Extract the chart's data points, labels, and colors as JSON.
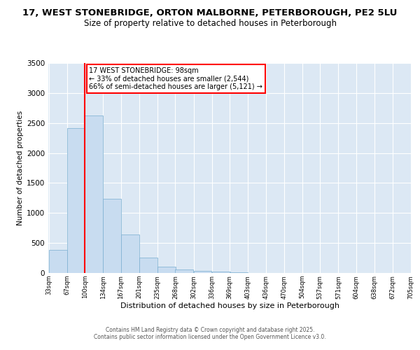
{
  "title1": "17, WEST STONEBRIDGE, ORTON MALBORNE, PETERBOROUGH, PE2 5LU",
  "title2": "Size of property relative to detached houses in Peterborough",
  "xlabel": "Distribution of detached houses by size in Peterborough",
  "ylabel": "Number of detached properties",
  "bar_color": "#c8dcf0",
  "bar_edge_color": "#7aaed0",
  "bg_color": "#dce8f4",
  "vline_color": "red",
  "vline_x": 100,
  "annotation_title": "17 WEST STONEBRIDGE: 98sqm",
  "annotation_line1": "← 33% of detached houses are smaller (2,544)",
  "annotation_line2": "66% of semi-detached houses are larger (5,121) →",
  "bin_labels": [
    "33sqm",
    "67sqm",
    "100sqm",
    "134sqm",
    "167sqm",
    "201sqm",
    "235sqm",
    "268sqm",
    "302sqm",
    "336sqm",
    "369sqm",
    "403sqm",
    "436sqm",
    "470sqm",
    "504sqm",
    "537sqm",
    "571sqm",
    "604sqm",
    "638sqm",
    "672sqm",
    "705sqm"
  ],
  "bin_left_edges": [
    33,
    67,
    100,
    134,
    167,
    201,
    235,
    268,
    302,
    336,
    369,
    403,
    436,
    470,
    504,
    537,
    571,
    604,
    638,
    672
  ],
  "bin_width": 34,
  "bar_heights": [
    390,
    2420,
    2620,
    1240,
    640,
    260,
    100,
    60,
    40,
    25,
    10,
    5,
    2,
    2,
    1,
    1,
    0,
    0,
    0,
    0
  ],
  "ylim": [
    0,
    3500
  ],
  "yticks": [
    0,
    500,
    1000,
    1500,
    2000,
    2500,
    3000,
    3500
  ],
  "footnote1": "Contains HM Land Registry data © Crown copyright and database right 2025.",
  "footnote2": "Contains public sector information licensed under the Open Government Licence v3.0.",
  "title_fontsize": 9.5,
  "subtitle_fontsize": 8.5,
  "ylabel_fontsize": 7.5,
  "xlabel_fontsize": 8,
  "tick_fontsize": 6,
  "ytick_fontsize": 7.5,
  "footnote_fontsize": 5.5,
  "annotation_fontsize": 7
}
